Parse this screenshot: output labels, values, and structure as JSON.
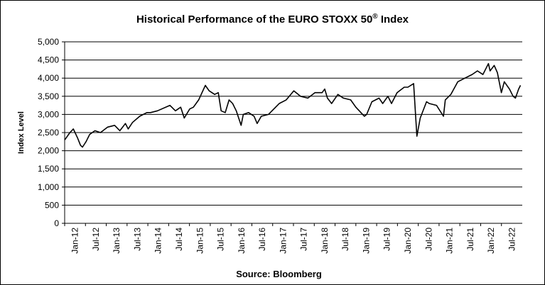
{
  "chart_data": {
    "type": "line",
    "title_main": "Historical  Performance  of the EURO STOXX 50",
    "title_reg": "®",
    "title_end": " Index",
    "xlabel": "Source: Bloomberg",
    "ylabel": "Index Level",
    "ylim": [
      0,
      5000
    ],
    "y_ticks": [
      0,
      500,
      1000,
      1500,
      2000,
      2500,
      3000,
      3500,
      4000,
      4500,
      5000
    ],
    "y_tick_labels": [
      "0",
      "500",
      "1,000",
      "1,500",
      "2,000",
      "2,500",
      "3,000",
      "3,500",
      "4,000",
      "4,500",
      "5,000"
    ],
    "x_tick_labels": [
      "Jan-12",
      "Jul-12",
      "Jan-13",
      "Jul-13",
      "Jan-14",
      "Jul-14",
      "Jan-15",
      "Jul-15",
      "Jan-16",
      "Jul-16",
      "Jan-17",
      "Jul-17",
      "Jan-18",
      "Jul-18",
      "Jan-19",
      "Jul-19",
      "Jan-20",
      "Jul-20",
      "Jan-21",
      "Jul-21",
      "Jan-22",
      "Jul-22"
    ],
    "grid": true,
    "series": [
      {
        "color": "#000000",
        "x": [
          "2012-01-02",
          "2012-02-15",
          "2012-03-15",
          "2012-04-20",
          "2012-05-15",
          "2012-06-01",
          "2012-07-01",
          "2012-08-01",
          "2012-09-15",
          "2012-11-01",
          "2013-01-01",
          "2013-03-01",
          "2013-04-15",
          "2013-06-01",
          "2013-06-25",
          "2013-08-01",
          "2013-10-01",
          "2013-12-01",
          "2014-01-01",
          "2014-03-01",
          "2014-06-15",
          "2014-08-01",
          "2014-09-15",
          "2014-10-15",
          "2014-12-01",
          "2015-01-01",
          "2015-02-15",
          "2015-04-13",
          "2015-05-15",
          "2015-07-01",
          "2015-08-01",
          "2015-08-25",
          "2015-09-29",
          "2015-11-01",
          "2015-12-01",
          "2016-01-01",
          "2016-02-11",
          "2016-03-01",
          "2016-04-15",
          "2016-06-01",
          "2016-06-27",
          "2016-08-01",
          "2016-10-01",
          "2016-12-01",
          "2017-01-01",
          "2017-03-01",
          "2017-05-05",
          "2017-07-01",
          "2017-09-01",
          "2017-11-01",
          "2018-01-01",
          "2018-01-23",
          "2018-02-15",
          "2018-03-23",
          "2018-05-15",
          "2018-07-01",
          "2018-09-01",
          "2018-10-15",
          "2018-12-27",
          "2019-01-15",
          "2019-03-01",
          "2019-05-01",
          "2019-06-01",
          "2019-07-15",
          "2019-08-15",
          "2019-10-01",
          "2019-12-01",
          "2020-01-01",
          "2020-02-19",
          "2020-03-18",
          "2020-04-15",
          "2020-06-08",
          "2020-07-01",
          "2020-09-01",
          "2020-10-30",
          "2020-11-15",
          "2021-01-01",
          "2021-03-01",
          "2021-05-01",
          "2021-07-01",
          "2021-08-15",
          "2021-10-01",
          "2021-11-17",
          "2021-12-01",
          "2022-01-05",
          "2022-02-01",
          "2022-03-07",
          "2022-04-01",
          "2022-05-15",
          "2022-06-15",
          "2022-07-05",
          "2022-08-01",
          "2022-08-17"
        ],
        "y": [
          2300,
          2500,
          2600,
          2350,
          2150,
          2100,
          2250,
          2450,
          2550,
          2500,
          2650,
          2700,
          2550,
          2750,
          2600,
          2780,
          2950,
          3050,
          3050,
          3100,
          3250,
          3100,
          3200,
          2900,
          3150,
          3200,
          3400,
          3800,
          3650,
          3550,
          3600,
          3100,
          3050,
          3400,
          3300,
          3100,
          2700,
          3000,
          3050,
          2950,
          2750,
          2950,
          3000,
          3200,
          3300,
          3400,
          3650,
          3500,
          3450,
          3600,
          3600,
          3700,
          3450,
          3300,
          3550,
          3450,
          3400,
          3200,
          2950,
          3000,
          3350,
          3450,
          3300,
          3500,
          3300,
          3600,
          3750,
          3750,
          3850,
          2400,
          2900,
          3350,
          3300,
          3250,
          2950,
          3400,
          3550,
          3900,
          4000,
          4100,
          4200,
          4100,
          4400,
          4200,
          4350,
          4150,
          3600,
          3900,
          3700,
          3500,
          3450,
          3700,
          3800
        ]
      }
    ]
  }
}
